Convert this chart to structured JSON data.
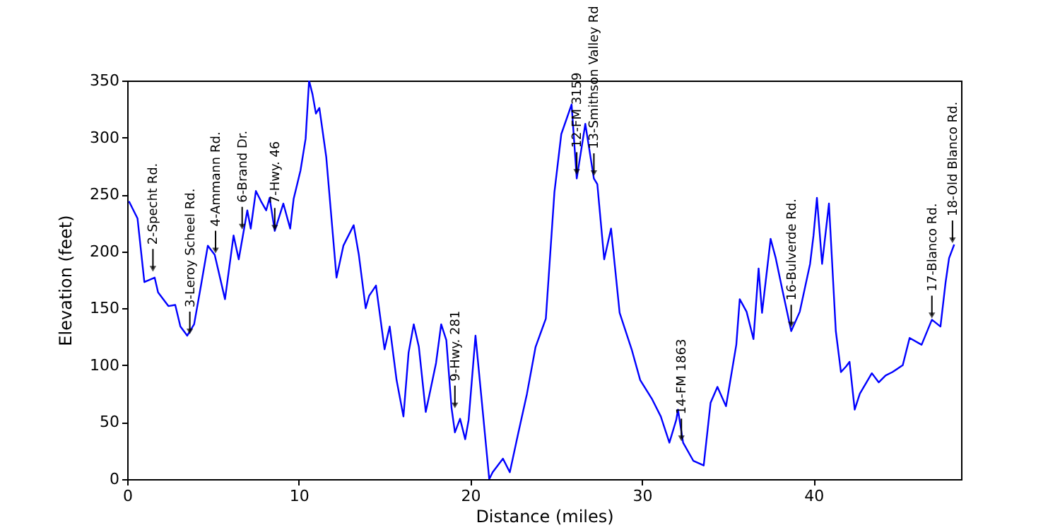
{
  "chart_data": {
    "type": "line",
    "xlabel": "Distance (miles)",
    "ylabel": "Elevation (feet)",
    "x": [
      0.1,
      0.6,
      1.0,
      1.6,
      1.8,
      2.4,
      2.8,
      3.1,
      3.5,
      3.9,
      4.3,
      4.7,
      5.1,
      5.7,
      6.2,
      6.5,
      7.0,
      7.2,
      7.5,
      7.8,
      8.1,
      8.3,
      8.6,
      9.1,
      9.5,
      9.7,
      10.1,
      10.4,
      10.6,
      10.8,
      11.0,
      11.2,
      11.6,
      12.2,
      12.6,
      13.2,
      13.5,
      13.9,
      14.1,
      14.5,
      15.0,
      15.3,
      15.7,
      16.1,
      16.4,
      16.7,
      17.0,
      17.4,
      17.6,
      18.0,
      18.3,
      18.6,
      18.9,
      19.1,
      19.4,
      19.7,
      19.9,
      20.3,
      20.7,
      21.1,
      21.3,
      21.9,
      22.3,
      22.8,
      23.3,
      23.8,
      24.4,
      24.9,
      25.3,
      25.9,
      26.2,
      26.7,
      27.2,
      27.4,
      27.8,
      28.2,
      28.7,
      29.4,
      29.9,
      30.6,
      31.1,
      31.6,
      32.0,
      32.1,
      32.4,
      33.0,
      33.6,
      34.0,
      34.4,
      34.9,
      35.5,
      35.7,
      36.1,
      36.5,
      36.8,
      37.0,
      37.5,
      37.8,
      38.2,
      38.7,
      39.2,
      39.8,
      40.0,
      40.2,
      40.5,
      40.9,
      41.3,
      41.6,
      41.9,
      42.1,
      42.4,
      42.7,
      43.4,
      43.8,
      44.2,
      44.6,
      45.2,
      45.6,
      46.3,
      46.9,
      47.4,
      47.7,
      47.9,
      48.2
    ],
    "series": [
      {
        "color": "#0000ff",
        "values": [
          244,
          229,
          173,
          177,
          164,
          152,
          153,
          134,
          126,
          136,
          170,
          205,
          197,
          158,
          214,
          193,
          236,
          220,
          253,
          244,
          236,
          247,
          218,
          242,
          220,
          246,
          271,
          299,
          350,
          338,
          321,
          326,
          283,
          177,
          205,
          223,
          197,
          150,
          161,
          170,
          114,
          134,
          87,
          55,
          111,
          136,
          116,
          59,
          73,
          102,
          136,
          122,
          63,
          41,
          53,
          35,
          52,
          126,
          63,
          0,
          6,
          18,
          6,
          41,
          75,
          116,
          141,
          252,
          303,
          329,
          264,
          312,
          264,
          259,
          193,
          220,
          146,
          114,
          87,
          70,
          55,
          32,
          52,
          61,
          32,
          16,
          12,
          67,
          81,
          64,
          118,
          158,
          147,
          123,
          185,
          146,
          211,
          194,
          165,
          130,
          147,
          189,
          214,
          247,
          189,
          242,
          130,
          94,
          99,
          103,
          61,
          75,
          93,
          85,
          91,
          94,
          100,
          124,
          118,
          140,
          134,
          173,
          194,
          206
        ]
      }
    ],
    "xlim": [
      0,
      48.6
    ],
    "ylim": [
      0,
      350
    ],
    "xticks": [
      0,
      10,
      20,
      30,
      40
    ],
    "yticks": [
      0,
      50,
      100,
      150,
      200,
      250,
      300,
      350
    ],
    "grid": false,
    "legend": false,
    "marker": "none",
    "line_style": "solid",
    "annotations": [
      {
        "text": "2-Specht Rd.",
        "x": 1.5,
        "y": 181
      },
      {
        "text": "3-Leroy Scheel Rd.",
        "x": 3.65,
        "y": 126
      },
      {
        "text": "4-Ammann Rd.",
        "x": 5.15,
        "y": 197
      },
      {
        "text": "6-Brand Dr.",
        "x": 6.7,
        "y": 218
      },
      {
        "text": "7-Hwy. 46",
        "x": 8.6,
        "y": 217
      },
      {
        "text": "9-Hwy. 281",
        "x": 19.1,
        "y": 61
      },
      {
        "text": "12-FM 3159",
        "x": 26.2,
        "y": 266
      },
      {
        "text": "13-Smithson Valley Rd",
        "x": 27.2,
        "y": 265
      },
      {
        "text": "14-FM 1863",
        "x": 32.3,
        "y": 32
      },
      {
        "text": "16-Bulverde Rd.",
        "x": 38.7,
        "y": 132
      },
      {
        "text": "17-Blanco Rd.",
        "x": 46.9,
        "y": 140
      },
      {
        "text": "18-Old Blanco Rd.",
        "x": 48.1,
        "y": 206
      }
    ]
  }
}
